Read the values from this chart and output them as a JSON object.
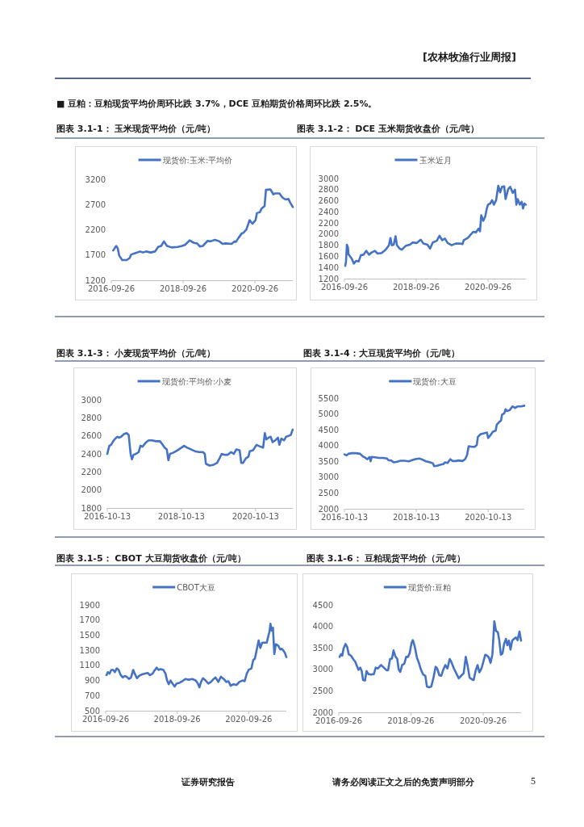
{
  "chart_data": [
    {
      "type": "other",
      "annotations": [
        "[农林牧渔行业周报]",
        "■  豆粕：豆粕现货平均价周环比跌 3.7%，DCE 豆粕期货价格周环比跌 2.5%。"
      ]
    },
    {
      "type": "line",
      "title": "图表 3.1-1：  玉米现货平均价（元/吨）",
      "legend": "top",
      "xlim": [
        "2016-09-26",
        "2021-10-15"
      ],
      "xticks": [
        "2016-09-26",
        "2018-09-26",
        "2020-09-26"
      ],
      "ylim": [
        1200,
        3200
      ],
      "yticks": [
        1200,
        1700,
        2200,
        2700,
        3200
      ],
      "x": [
        "2016-10-15",
        "2016-11-15",
        "2016-12-01",
        "2016-12-15",
        "2017-01-15",
        "2017-03-01",
        "2017-04-01",
        "2017-04-15",
        "2017-06-01",
        "2017-07-15",
        "2017-08-15",
        "2017-09-15",
        "2017-11-01",
        "2017-12-15",
        "2018-01-15",
        "2018-02-15",
        "2018-03-15",
        "2018-04-15",
        "2018-06-01",
        "2018-08-01",
        "2018-09-15",
        "2018-10-15",
        "2018-12-01",
        "2019-01-15",
        "2019-02-15",
        "2019-03-15",
        "2019-04-15",
        "2019-06-01",
        "2019-07-01",
        "2019-08-15",
        "2019-10-01",
        "2019-11-01",
        "2019-12-01",
        "2020-02-01",
        "2020-03-01",
        "2020-03-15",
        "2020-04-15",
        "2020-05-15",
        "2020-06-01",
        "2020-07-01",
        "2020-08-01",
        "2020-09-01",
        "2020-10-01",
        "2020-10-15",
        "2020-11-15",
        "2020-12-01",
        "2021-01-01",
        "2021-01-15",
        "2021-03-01",
        "2021-04-01",
        "2021-04-15",
        "2021-06-01",
        "2021-07-01",
        "2021-08-01",
        "2021-09-01",
        "2021-09-15",
        "2021-10-15"
      ],
      "series": [
        {
          "name": "现货价:玉米:平均价",
          "color": "#4472c4",
          "values": [
            1790,
            1880,
            1830,
            1690,
            1600,
            1600,
            1640,
            1710,
            1740,
            1770,
            1750,
            1770,
            1750,
            1770,
            1860,
            1880,
            1970,
            1880,
            1850,
            1860,
            1880,
            1900,
            1990,
            1940,
            1930,
            1870,
            1880,
            1980,
            1970,
            2000,
            1970,
            1920,
            1930,
            1920,
            1970,
            1960,
            2050,
            2130,
            2140,
            2210,
            2390,
            2320,
            2390,
            2530,
            2550,
            2620,
            2670,
            2990,
            3000,
            2900,
            2920,
            2920,
            2840,
            2800,
            2810,
            2750,
            2650
          ]
        }
      ]
    },
    {
      "type": "line",
      "title": "图表 3.1-2：  DCE 玉米期货收盘价（元/吨）",
      "legend": "top",
      "xlim": [
        "2016-09-26",
        "2021-10-15"
      ],
      "xticks": [
        "2016-09-26",
        "2018-09-26",
        "2020-09-26"
      ],
      "ylim": [
        1200,
        3000
      ],
      "yticks": [
        1200,
        1400,
        1600,
        1800,
        2000,
        2200,
        2400,
        2600,
        2800,
        3000
      ],
      "x": [
        "2016-10-04",
        "2016-10-12",
        "2016-10-21",
        "2016-11-01",
        "2016-11-06",
        "2016-11-23",
        "2016-12-12",
        "2016-12-31",
        "2017-01-22",
        "2017-02-18",
        "2017-03-12",
        "2017-04-08",
        "2017-05-06",
        "2017-06-02",
        "2017-06-30",
        "2017-08-02",
        "2017-08-29",
        "2017-10-09",
        "2017-11-19",
        "2017-12-22",
        "2018-01-07",
        "2018-01-21",
        "2018-02-09",
        "2018-02-28",
        "2018-03-14",
        "2018-04-10",
        "2018-05-02",
        "2018-06-12",
        "2018-07-24",
        "2018-08-20",
        "2018-09-30",
        "2018-11-10",
        "2018-12-08",
        "2019-01-18",
        "2019-02-14",
        "2019-03-13",
        "2019-04-23",
        "2019-05-21",
        "2019-06-17",
        "2019-07-15",
        "2019-08-11",
        "2019-09-21",
        "2019-11-01",
        "2019-12-12",
        "2020-01-09",
        "2020-01-22",
        "2020-03-03",
        "2020-03-31",
        "2020-04-27",
        "2020-05-25",
        "2020-06-21",
        "2020-07-05",
        "2020-07-18",
        "2020-08-07",
        "2020-08-28",
        "2020-09-11",
        "2020-09-25",
        "2020-10-17",
        "2020-11-05",
        "2020-11-24",
        "2020-12-16",
        "2021-01-07",
        "2021-01-26",
        "2021-02-14",
        "2021-03-08",
        "2021-03-22",
        "2021-04-18",
        "2021-05-08",
        "2021-06-04",
        "2021-06-26",
        "2021-07-10",
        "2021-07-23",
        "2021-08-14",
        "2021-09-02",
        "2021-09-16",
        "2021-09-30",
        "2021-10-13"
      ],
      "series": [
        {
          "name": "玉米近月",
          "color": "#4472c4",
          "values": [
            1430,
            1500,
            1810,
            1760,
            1640,
            1600,
            1550,
            1470,
            1520,
            1510,
            1620,
            1630,
            1700,
            1630,
            1670,
            1700,
            1650,
            1660,
            1720,
            1800,
            1930,
            1800,
            1810,
            1960,
            1800,
            1740,
            1720,
            1790,
            1810,
            1850,
            1840,
            1900,
            1830,
            1810,
            1740,
            1850,
            1880,
            1970,
            1890,
            1920,
            1840,
            1800,
            1830,
            1830,
            1820,
            1890,
            1930,
            1990,
            2040,
            2030,
            2100,
            2050,
            2340,
            2240,
            2320,
            2450,
            2530,
            2550,
            2610,
            2530,
            2610,
            2870,
            2750,
            2850,
            2860,
            2630,
            2810,
            2850,
            2740,
            2800,
            2530,
            2630,
            2530,
            2580,
            2460,
            2550,
            2530
          ]
        }
      ]
    },
    {
      "type": "line",
      "title": "图表 3.1-3：  小麦现货平均价（元/吨）",
      "legend": "top",
      "xlim": [
        "2016-10-13",
        "2021-10-15"
      ],
      "xticks": [
        "2016-10-13",
        "2018-10-13",
        "2020-10-13"
      ],
      "ylim": [
        1800,
        3000
      ],
      "yticks": [
        1800,
        2000,
        2200,
        2400,
        2600,
        2800,
        3000
      ],
      "x": [
        "2016-10-13",
        "2016-10-24",
        "2016-11-03",
        "2016-11-19",
        "2016-12-10",
        "2016-12-31",
        "2017-01-21",
        "2017-02-06",
        "2017-02-27",
        "2017-03-26",
        "2017-04-21",
        "2017-05-12",
        "2017-05-31",
        "2017-06-13",
        "2017-06-29",
        "2017-07-22",
        "2017-08-18",
        "2017-09-05",
        "2017-09-26",
        "2017-10-23",
        "2017-11-24",
        "2017-12-28",
        "2018-02-05",
        "2018-03-17",
        "2018-04-12",
        "2018-05-01",
        "2018-05-22",
        "2018-06-07",
        "2018-06-23",
        "2018-07-19",
        "2018-08-22",
        "2018-10-01",
        "2018-11-10",
        "2018-12-06",
        "2019-01-15",
        "2019-02-23",
        "2019-04-04",
        "2019-05-13",
        "2019-06-01",
        "2019-06-12",
        "2019-07-18",
        "2019-08-27",
        "2019-09-30",
        "2019-10-19",
        "2019-11-14",
        "2019-12-11",
        "2020-01-14",
        "2020-02-15",
        "2020-03-12",
        "2020-04-07",
        "2020-05-09",
        "2020-05-25",
        "2020-06-12",
        "2020-07-09",
        "2020-08-04",
        "2020-08-17",
        "2020-09-18",
        "2020-10-22",
        "2020-12-01",
        "2020-12-27",
        "2021-01-12",
        "2021-01-28",
        "2021-02-18",
        "2021-03-11",
        "2021-03-30",
        "2021-04-25",
        "2021-05-22",
        "2021-06-04",
        "2021-06-25",
        "2021-07-21",
        "2021-08-09",
        "2021-09-04",
        "2021-09-25",
        "2021-10-14"
      ],
      "series": [
        {
          "name": "现货价:平均价:小麦",
          "color": "#4472c4",
          "values": [
            2400,
            2450,
            2490,
            2500,
            2540,
            2570,
            2590,
            2580,
            2590,
            2620,
            2630,
            2610,
            2400,
            2340,
            2390,
            2400,
            2420,
            2490,
            2480,
            2520,
            2550,
            2550,
            2540,
            2540,
            2500,
            2470,
            2450,
            2330,
            2400,
            2410,
            2430,
            2460,
            2490,
            2470,
            2450,
            2430,
            2420,
            2420,
            2400,
            2290,
            2270,
            2280,
            2300,
            2340,
            2400,
            2390,
            2390,
            2420,
            2400,
            2450,
            2440,
            2300,
            2300,
            2350,
            2370,
            2430,
            2440,
            2500,
            2480,
            2470,
            2630,
            2560,
            2580,
            2590,
            2530,
            2550,
            2580,
            2500,
            2570,
            2550,
            2590,
            2600,
            2610,
            2670
          ]
        }
      ]
    },
    {
      "type": "line",
      "title": "图表 3.1-4：大豆现货平均价（元/吨）",
      "legend": "top",
      "xlim": [
        "2016-10-13",
        "2021-10-15"
      ],
      "xticks": [
        "2016-10-13",
        "2018-10-13",
        "2020-10-13"
      ],
      "ylim": [
        2000,
        5500
      ],
      "yticks": [
        2000,
        2500,
        3000,
        3500,
        4000,
        4500,
        5000,
        5500
      ],
      "x": [
        "2016-10-13",
        "2016-11-04",
        "2016-11-23",
        "2016-12-29",
        "2017-02-08",
        "2017-03-21",
        "2017-04-17",
        "2017-05-15",
        "2017-06-03",
        "2017-06-25",
        "2017-07-06",
        "2017-07-17",
        "2017-08-19",
        "2017-09-29",
        "2017-11-09",
        "2017-12-20",
        "2018-01-02",
        "2018-01-30",
        "2018-02-26",
        "2018-03-31",
        "2018-05-06",
        "2018-06-16",
        "2018-07-27",
        "2018-08-23",
        "2018-10-03",
        "2018-11-13",
        "2018-12-19",
        "2019-01-21",
        "2019-03-03",
        "2019-03-30",
        "2019-04-13",
        "2019-05-10",
        "2019-06-21",
        "2019-07-18",
        "2019-08-01",
        "2019-08-28",
        "2019-09-24",
        "2019-10-16",
        "2019-11-18",
        "2019-12-16",
        "2020-01-26",
        "2020-02-22",
        "2020-03-12",
        "2020-03-29",
        "2020-05-01",
        "2020-05-28",
        "2020-06-19",
        "2020-06-30",
        "2020-07-27",
        "2020-08-24",
        "2020-09-15",
        "2020-10-01",
        "2020-10-12",
        "2020-11-03",
        "2020-11-30",
        "2020-12-28",
        "2021-01-08",
        "2021-02-04",
        "2021-02-20",
        "2021-03-03",
        "2021-03-25",
        "2021-04-08",
        "2021-04-22",
        "2021-05-19",
        "2021-06-16",
        "2021-07-13",
        "2021-08-09",
        "2021-09-11",
        "2021-10-15"
      ],
      "series": [
        {
          "name": "现货价:大豆",
          "color": "#4472c4",
          "values": [
            3720,
            3690,
            3740,
            3760,
            3760,
            3740,
            3660,
            3610,
            3570,
            3640,
            3500,
            3640,
            3630,
            3610,
            3610,
            3590,
            3540,
            3530,
            3470,
            3490,
            3520,
            3520,
            3500,
            3530,
            3570,
            3590,
            3550,
            3500,
            3470,
            3440,
            3350,
            3360,
            3400,
            3420,
            3470,
            3450,
            3570,
            3510,
            3510,
            3530,
            3510,
            3570,
            3700,
            3980,
            3960,
            3960,
            4020,
            4270,
            4360,
            4380,
            4400,
            4410,
            4240,
            4320,
            4440,
            4470,
            4660,
            4750,
            4790,
            4980,
            5020,
            5150,
            5090,
            5120,
            5240,
            5190,
            5240,
            5240,
            5260
          ]
        }
      ]
    },
    {
      "type": "line",
      "title": "图表 3.1-5：  CBOT 大豆期货收盘价（元/吨）",
      "legend": "top",
      "xlim": [
        "2016-09-26",
        "2021-10-15"
      ],
      "xticks": [
        "2016-09-26",
        "2018-09-26",
        "2020-09-26"
      ],
      "ylim": [
        500,
        1900
      ],
      "yticks": [
        500,
        700,
        900,
        1100,
        1300,
        1500,
        1700,
        1900
      ],
      "x": [
        "2016-10-04",
        "2016-10-18",
        "2016-11-04",
        "2016-11-23",
        "2016-12-12",
        "2016-12-29",
        "2017-01-17",
        "2017-02-05",
        "2017-02-27",
        "2017-03-21",
        "2017-04-09",
        "2017-04-29",
        "2017-05-21",
        "2017-06-12",
        "2017-07-04",
        "2017-07-20",
        "2017-08-11",
        "2017-09-02",
        "2017-09-30",
        "2017-10-27",
        "2017-11-29",
        "2017-12-21",
        "2018-01-18",
        "2018-02-06",
        "2018-02-28",
        "2018-03-19",
        "2018-04-10",
        "2018-05-08",
        "2018-05-30",
        "2018-06-15",
        "2018-07-02",
        "2018-07-21",
        "2018-08-09",
        "2018-08-31",
        "2018-09-22",
        "2018-10-20",
        "2018-11-16",
        "2018-12-19",
        "2019-01-21",
        "2019-02-26",
        "2019-04-03",
        "2019-04-25",
        "2019-05-11",
        "2019-05-28",
        "2019-06-16",
        "2019-07-13",
        "2019-08-10",
        "2019-09-06",
        "2019-10-04",
        "2019-10-23",
        "2019-11-20",
        "2019-12-17",
        "2020-01-14",
        "2020-02-10",
        "2020-03-03",
        "2020-03-25",
        "2020-04-22",
        "2020-05-25",
        "2020-06-21",
        "2020-07-24",
        "2020-08-15",
        "2020-09-06",
        "2020-09-25",
        "2020-10-23",
        "2020-11-11",
        "2020-11-28",
        "2020-12-17",
        "2021-01-05",
        "2021-01-22",
        "2021-02-10",
        "2021-03-09",
        "2021-03-29",
        "2021-04-14",
        "2021-04-25",
        "2021-05-06",
        "2021-05-17",
        "2021-05-31",
        "2021-06-14",
        "2021-06-30",
        "2021-07-25",
        "2021-08-13",
        "2021-08-30",
        "2021-09-18",
        "2021-10-02",
        "2021-10-15"
      ],
      "series": [
        {
          "name": "CBOT大豆",
          "color": "#4472c4",
          "values": [
            970,
            1010,
            990,
            1040,
            1040,
            1010,
            1060,
            1040,
            970,
            940,
            960,
            950,
            920,
            940,
            1040,
            990,
            930,
            960,
            980,
            990,
            1000,
            970,
            990,
            1030,
            1070,
            1040,
            1050,
            1040,
            990,
            900,
            850,
            900,
            860,
            820,
            860,
            870,
            890,
            920,
            910,
            920,
            900,
            860,
            810,
            880,
            930,
            900,
            860,
            880,
            920,
            940,
            880,
            950,
            920,
            880,
            890,
            830,
            850,
            840,
            880,
            900,
            890,
            990,
            1040,
            1060,
            1170,
            1190,
            1310,
            1430,
            1330,
            1400,
            1400,
            1400,
            1490,
            1540,
            1650,
            1560,
            1600,
            1250,
            1380,
            1360,
            1310,
            1320,
            1290,
            1260,
            1210
          ]
        }
      ]
    },
    {
      "type": "line",
      "title": "图表 3.1-6：  豆粕现货平均价（元/吨）",
      "legend": "top",
      "xlim": [
        "2016-09-26",
        "2021-10-15"
      ],
      "xticks": [
        "2016-09-26",
        "2018-09-26",
        "2020-09-26"
      ],
      "ylim": [
        2000,
        4500
      ],
      "yticks": [
        2000,
        2500,
        3000,
        3500,
        4000,
        4500
      ],
      "x": [
        "2016-10-04",
        "2016-10-18",
        "2016-10-31",
        "2016-11-14",
        "2016-12-03",
        "2016-12-20",
        "2017-01-05",
        "2017-01-27",
        "2017-02-18",
        "2017-03-11",
        "2017-03-28",
        "2017-04-13",
        "2017-05-02",
        "2017-05-16",
        "2017-05-30",
        "2017-06-18",
        "2017-07-04",
        "2017-07-23",
        "2017-08-19",
        "2017-09-16",
        "2017-10-05",
        "2017-10-27",
        "2017-11-28",
        "2017-12-26",
        "2018-01-22",
        "2018-02-07",
        "2018-02-27",
        "2018-03-18",
        "2018-04-03",
        "2018-04-22",
        "2018-05-11",
        "2018-05-25",
        "2018-06-10",
        "2018-06-29",
        "2018-07-21",
        "2018-08-09",
        "2018-08-28",
        "2018-09-14",
        "2018-10-03",
        "2018-10-16",
        "2018-11-05",
        "2018-11-26",
        "2018-12-16",
        "2019-01-06",
        "2019-01-28",
        "2019-02-19",
        "2019-03-07",
        "2019-03-29",
        "2019-04-20",
        "2019-05-12",
        "2019-06-03",
        "2019-06-19",
        "2019-07-11",
        "2019-07-30",
        "2019-08-18",
        "2019-09-09",
        "2019-10-01",
        "2019-10-23",
        "2019-11-08",
        "2019-12-05",
        "2020-01-02",
        "2020-01-23",
        "2020-02-20",
        "2020-03-13",
        "2020-04-03",
        "2020-04-22",
        "2020-05-12",
        "2020-06-02",
        "2020-06-22",
        "2020-07-11",
        "2020-08-01",
        "2020-08-18",
        "2020-09-09",
        "2020-09-25",
        "2020-10-17",
        "2020-11-05",
        "2020-11-24",
        "2020-12-10",
        "2020-12-29",
        "2021-01-17",
        "2021-02-03",
        "2021-02-22",
        "2021-03-08",
        "2021-03-24",
        "2021-04-10",
        "2021-04-26",
        "2021-05-15",
        "2021-05-29",
        "2021-06-14",
        "2021-06-30",
        "2021-07-17",
        "2021-08-05",
        "2021-08-24",
        "2021-09-09",
        "2021-09-29",
        "2021-10-06",
        "2021-10-15"
      ],
      "series": [
        {
          "name": "现货价:豆粕",
          "color": "#4472c4",
          "values": [
            3290,
            3350,
            3320,
            3490,
            3590,
            3520,
            3350,
            3320,
            3240,
            3180,
            3080,
            2990,
            3040,
            2960,
            2750,
            2740,
            2960,
            2890,
            2880,
            2890,
            3040,
            3020,
            3100,
            3040,
            2980,
            2980,
            3240,
            3250,
            3440,
            3300,
            3240,
            3000,
            2940,
            3100,
            3130,
            3290,
            3290,
            3380,
            3620,
            3680,
            3520,
            3270,
            3150,
            2990,
            2880,
            2850,
            2600,
            2580,
            2600,
            2800,
            3060,
            3020,
            2860,
            2850,
            2980,
            3100,
            3020,
            3240,
            3180,
            3020,
            2890,
            2790,
            2860,
            2910,
            3290,
            3080,
            2810,
            2770,
            2750,
            2960,
            3100,
            2930,
            3020,
            3150,
            3340,
            3320,
            3270,
            3150,
            3350,
            4120,
            3900,
            3860,
            3680,
            3340,
            3370,
            3590,
            3710,
            3560,
            3670,
            3460,
            3670,
            3710,
            3740,
            3680,
            3880,
            3780,
            3670
          ]
        }
      ]
    },
    {
      "type": "other",
      "annotations": [
        "证券研究报告",
        "请务必阅读正文之后的免责声明部分",
        "5"
      ]
    }
  ]
}
